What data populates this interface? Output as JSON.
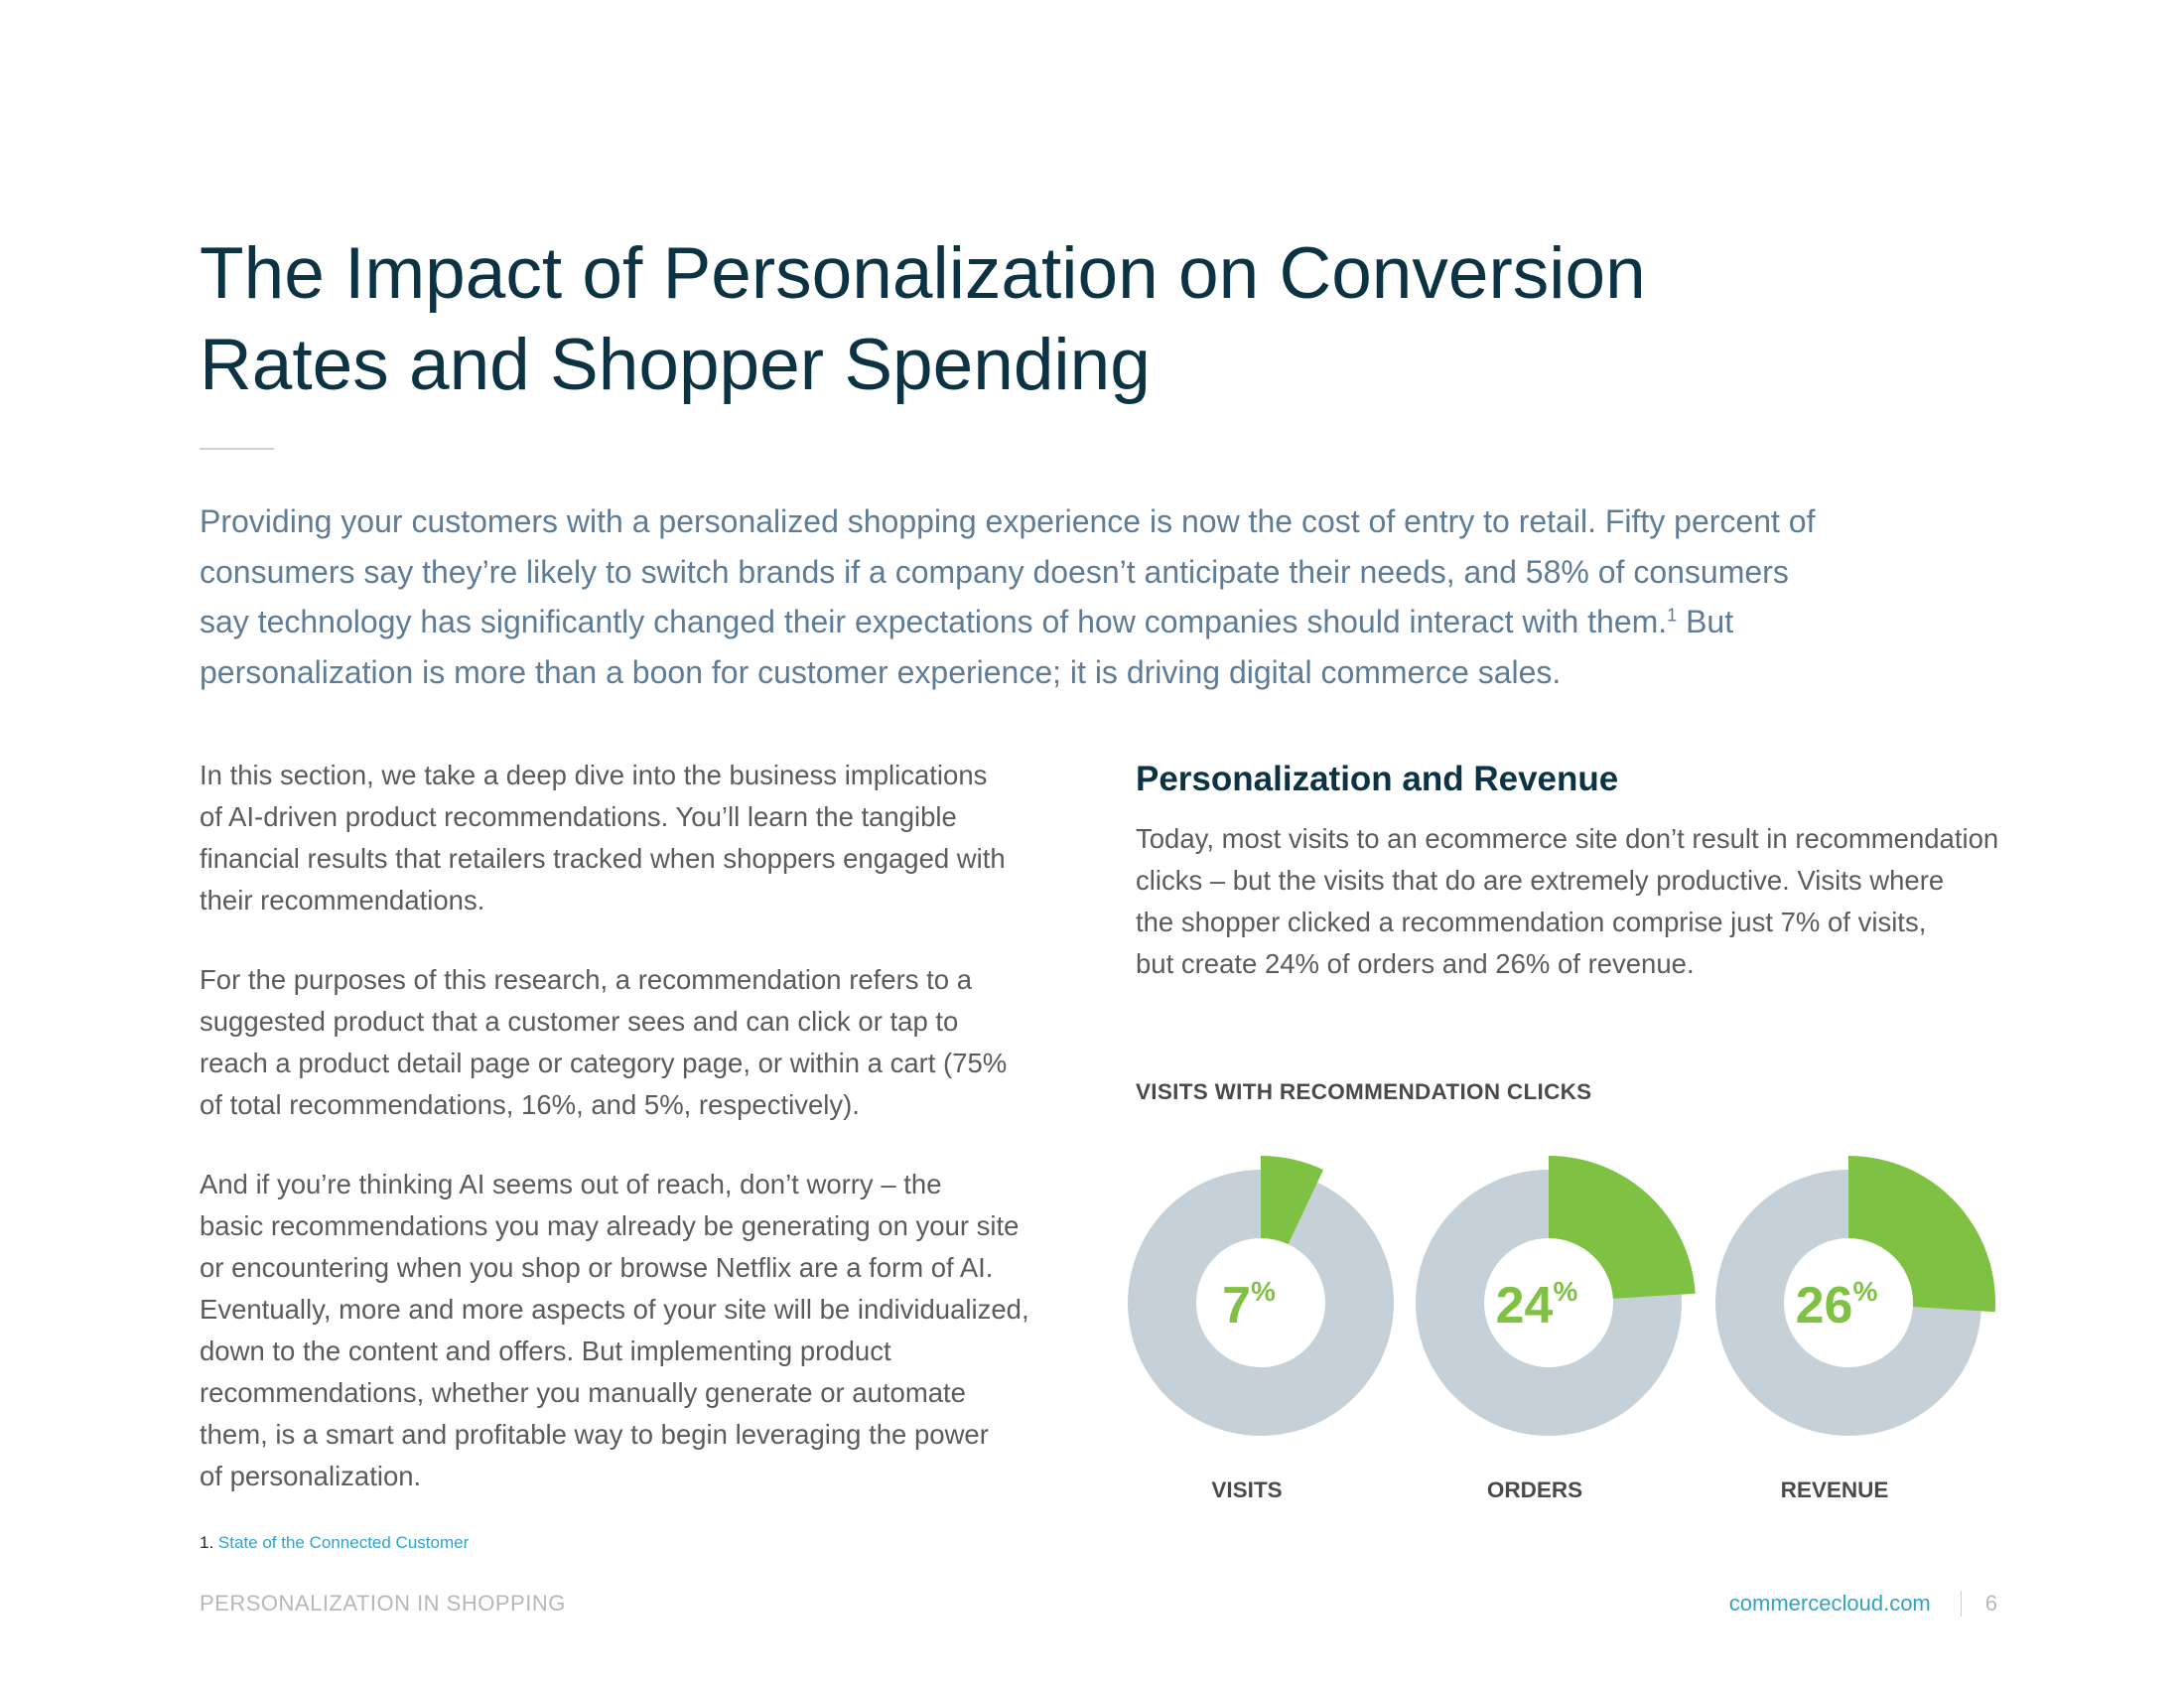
{
  "title": {
    "lines": [
      "The Impact of Personalization on Conversion",
      "Rates and Shopper Spending"
    ]
  },
  "intro": {
    "line1": "Providing your customers with a personalized shopping experience is now the cost of entry to retail. Fifty percent of",
    "line2": "consumers say they’re likely to switch brands if a company doesn’t anticipate their needs, and 58% of consumers",
    "line3": "say technology has significantly changed their expectations of how companies should interact with them.",
    "footnote_ref": "1",
    "line3_tail": " But",
    "line4": "personalization is more than a boon for customer experience; it is driving digital commerce sales."
  },
  "left_column": {
    "paragraphs": [
      {
        "lines": [
          "In this section, we take a deep dive into the business implications",
          "of AI-driven product recommendations. You’ll learn the tangible",
          "financial results that retailers tracked when shoppers engaged with",
          "their recommendations."
        ]
      },
      {
        "lines": [
          "For the purposes of this research, a recommendation refers to a",
          "suggested product that a customer sees and can click or tap to",
          "reach a product detail page or category page, or within a cart (75%",
          "of total recommendations, 16%, and 5%, respectively)."
        ]
      },
      {
        "lines": [
          "And if you’re thinking AI seems out of reach, don’t worry – the",
          "basic recommendations you may already be generating on your site",
          "or encountering when you shop or browse Netflix are a form of AI.",
          "Eventually, more and more aspects of your site will be individualized,",
          "down to the content and offers. But implementing product",
          "recommendations, whether you manually generate or automate",
          "them, is a smart and profitable way to begin leveraging the power",
          "of personalization."
        ]
      }
    ]
  },
  "right_column": {
    "heading": "Personalization and Revenue",
    "lines": [
      "Today, most visits to an ecommerce site don’t result in recommendation",
      "clicks – but the visits that do are extremely productive. Visits where",
      "the shopper clicked a recommendation comprise just 7% of visits,",
      "but create 24% of orders and 26% of revenue."
    ]
  },
  "chart_data": {
    "type": "pie",
    "title": "VISITS WITH RECOMMENDATION CLICKS",
    "unit": "%",
    "categories": [
      "VISITS",
      "ORDERS",
      "REVENUE"
    ],
    "values": [
      7,
      24,
      26
    ],
    "colors": {
      "highlight": "#7fc142",
      "remainder": "#c5d0d8"
    }
  },
  "footnote": {
    "number": "1.",
    "link_text": "State of the Connected Customer"
  },
  "footer": {
    "left": "PERSONALIZATION IN SHOPPING",
    "url": "commercecloud.com",
    "page": "6"
  }
}
